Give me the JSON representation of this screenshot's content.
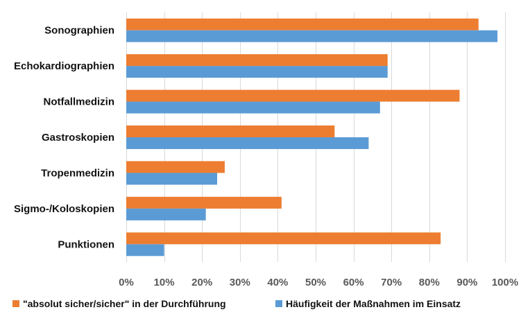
{
  "chart_data": {
    "type": "bar",
    "orientation": "horizontal",
    "categories": [
      "Sonographien",
      "Echokardiographien",
      "Notfallmedizin",
      "Gastroskopien",
      "Tropenmedizin",
      "Sigmo-/Koloskopien",
      "Punktionen"
    ],
    "series": [
      {
        "name": "\"absolut sicher/sicher\" in der Durchführung",
        "color": "#ED7D31",
        "values": [
          93,
          69,
          88,
          55,
          26,
          41,
          83
        ]
      },
      {
        "name": "Häufigkeit der Maßnahmen im Einsatz",
        "color": "#5B9BD5",
        "values": [
          98,
          69,
          67,
          64,
          24,
          21,
          10
        ]
      }
    ],
    "xlim": [
      0,
      100
    ],
    "xticks": [
      0,
      10,
      20,
      30,
      40,
      50,
      60,
      70,
      80,
      90,
      100
    ],
    "tick_labels": [
      "0%",
      "10%",
      "20%",
      "30%",
      "40%",
      "50%",
      "60%",
      "70%",
      "80%",
      "90%",
      "100%"
    ],
    "grid": true,
    "legend_position": "bottom",
    "title": "",
    "xlabel": "",
    "ylabel": ""
  }
}
